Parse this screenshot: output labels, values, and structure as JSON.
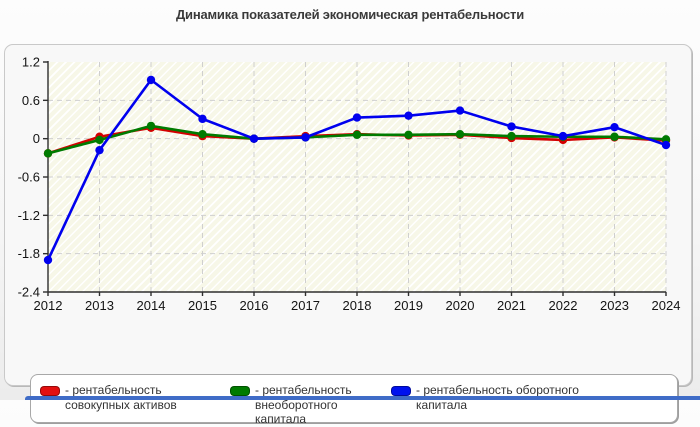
{
  "title": "Динамика показателей экономическая рентабельности",
  "legend": {
    "items": [
      {
        "label": "- рентабельность совокупных активов",
        "color": "#e31010"
      },
      {
        "label": "- рентабельность внеоборотного капитала",
        "color": "#007b00"
      },
      {
        "label": "- рентабельность оборотного капитала",
        "color": "#0012ee"
      }
    ]
  },
  "chart_data": {
    "type": "line",
    "title": "Динамика показателей экономическая рентабельности",
    "x": [
      2012,
      2013,
      2014,
      2015,
      2016,
      2017,
      2018,
      2019,
      2020,
      2021,
      2022,
      2023,
      2024
    ],
    "series": [
      {
        "name": "рентабельность совокупных активов",
        "color": "#d40000",
        "values": [
          -0.23,
          0.03,
          0.17,
          0.04,
          0.0,
          0.04,
          0.07,
          0.05,
          0.06,
          0.01,
          -0.02,
          0.02,
          -0.03
        ]
      },
      {
        "name": "рентабельность внеоборотного капитала",
        "color": "#007b00",
        "values": [
          -0.23,
          -0.02,
          0.2,
          0.07,
          0.0,
          0.02,
          0.06,
          0.06,
          0.07,
          0.04,
          0.03,
          0.03,
          -0.01
        ]
      },
      {
        "name": "рентабельность оборотного капитала",
        "color": "#0000ee",
        "values": [
          -1.9,
          -0.18,
          0.92,
          0.31,
          0.0,
          0.02,
          0.33,
          0.36,
          0.44,
          0.19,
          0.04,
          0.18,
          -0.1
        ]
      }
    ],
    "xlabel": "",
    "ylabel": "",
    "ylim": [
      -2.4,
      1.2
    ],
    "yticks": [
      1.2,
      0.6,
      0,
      -0.6,
      -1.2,
      -1.8,
      -2.4
    ],
    "grid": true,
    "grid_style": "dashed",
    "legend_position": "bottom"
  }
}
